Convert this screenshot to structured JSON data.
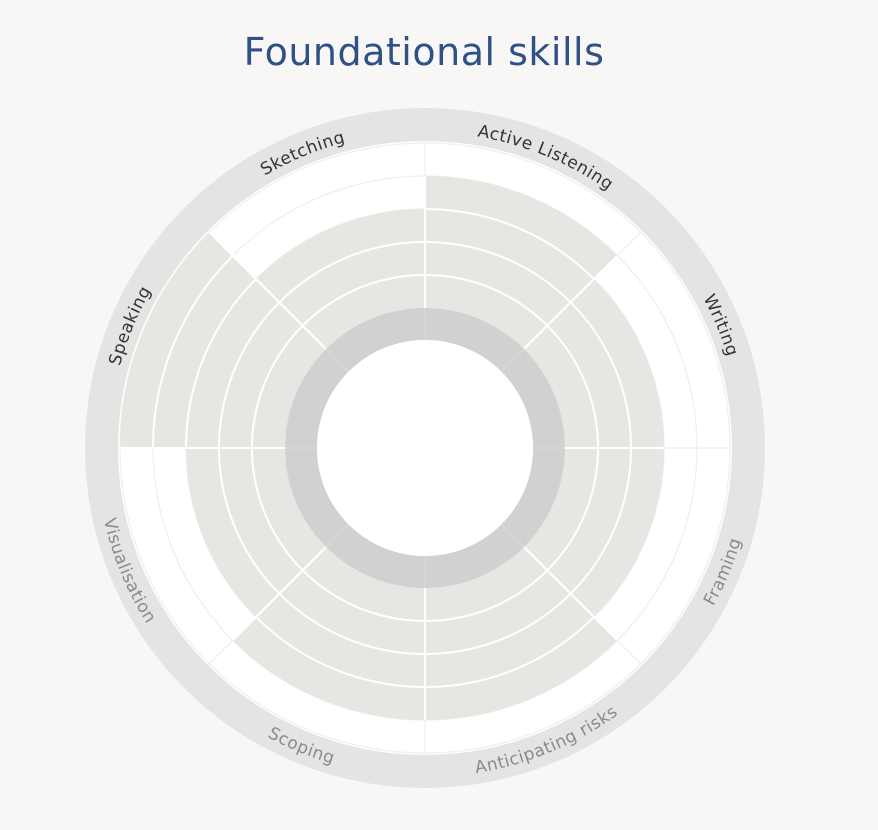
{
  "chart_data": {
    "type": "radial-bar",
    "title": "Foundational skills",
    "scale_max": 10,
    "categories": [
      {
        "name": "Active Listening",
        "value": 5,
        "highlighted": true
      },
      {
        "name": "Writing",
        "value": 4,
        "highlighted": true
      },
      {
        "name": "Framing",
        "value": 4,
        "highlighted": false
      },
      {
        "name": "Anticipating risks",
        "value": 5,
        "highlighted": false
      },
      {
        "name": "Scoping",
        "value": 5,
        "highlighted": false
      },
      {
        "name": "Visualisation",
        "value": 4,
        "highlighted": false
      },
      {
        "name": "Speaking",
        "value": 6,
        "highlighted": true
      },
      {
        "name": "Sketching",
        "value": 4,
        "highlighted": true
      }
    ],
    "colors": {
      "background": "#f8f7f6",
      "title": "#2f5186",
      "outer_ring": "#e4e4e3",
      "plot_area": "#ffffff",
      "grid": "#eeeeec",
      "bar_fill": "#e6e6e2",
      "core_ring": "#d1d1d1",
      "label_highlight": "#333333",
      "label_muted": "#8a8a8a"
    }
  }
}
